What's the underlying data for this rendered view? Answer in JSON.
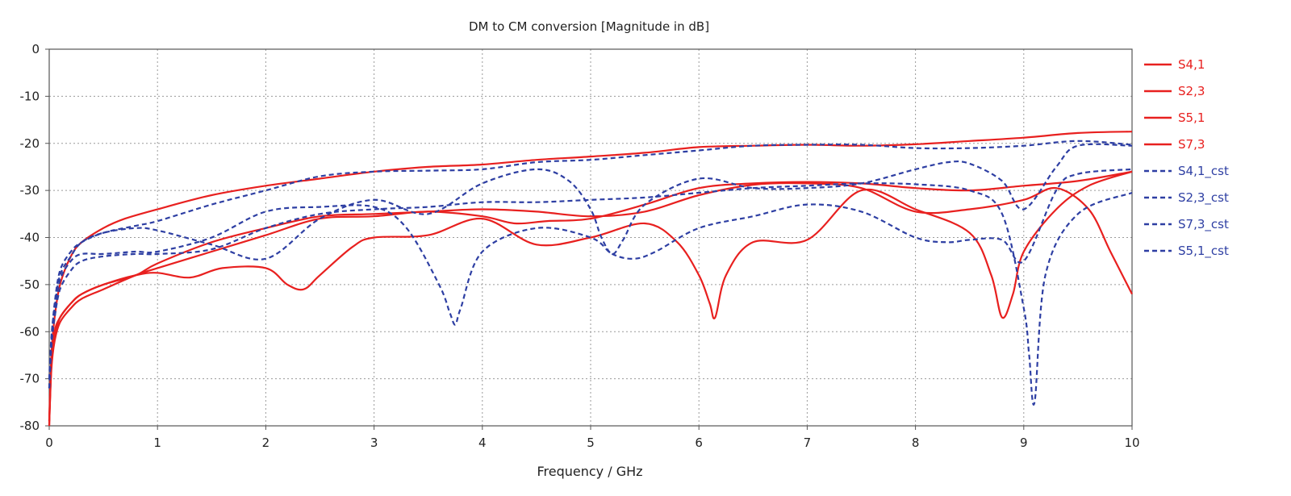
{
  "chart_data": {
    "type": "line",
    "title": "DM to CM conversion [Magnitude in dB]",
    "xlabel": "Frequency / GHz",
    "ylabel": "",
    "xlim": [
      0,
      10
    ],
    "ylim": [
      -80,
      0
    ],
    "xticks": [
      0,
      1,
      2,
      3,
      4,
      5,
      6,
      7,
      8,
      9,
      10
    ],
    "yticks": [
      0,
      -10,
      -20,
      -30,
      -40,
      -50,
      -60,
      -70,
      -80
    ],
    "grid": true,
    "legend_position": "right",
    "series": [
      {
        "name": "S4,1",
        "color": "#e8201f",
        "style": "solid",
        "x": [
          0,
          0.02,
          0.05,
          0.1,
          0.2,
          0.3,
          0.5,
          0.7,
          1.0,
          1.5,
          2.0,
          2.5,
          3.0,
          3.5,
          4.0,
          4.5,
          5.0,
          5.5,
          6.0,
          6.5,
          7.0,
          7.5,
          8.0,
          8.5,
          9.0,
          9.5,
          10.0
        ],
        "y": [
          -79,
          -65,
          -57,
          -50,
          -44,
          -41,
          -38,
          -36,
          -34,
          -31,
          -29,
          -27.5,
          -26,
          -25,
          -24.5,
          -23.5,
          -22.8,
          -22,
          -20.8,
          -20.5,
          -20.3,
          -20.5,
          -20.2,
          -19.5,
          -18.8,
          -17.8,
          -17.5
        ]
      },
      {
        "name": "S2,3",
        "color": "#e8201f",
        "style": "solid",
        "x": [
          0,
          0.02,
          0.05,
          0.1,
          0.2,
          0.3,
          0.5,
          0.8,
          1.0,
          1.5,
          2.0,
          2.5,
          3.0,
          3.5,
          4.0,
          4.3,
          4.6,
          5.0,
          5.5,
          6.0,
          6.5,
          7.0,
          7.5,
          8.0,
          8.5,
          9.0,
          9.5,
          10.0
        ],
        "y": [
          -80,
          -68,
          -62,
          -58,
          -55,
          -53,
          -51,
          -48,
          -46.5,
          -43,
          -39.5,
          -36,
          -35.5,
          -34.5,
          -35.5,
          -37,
          -36.5,
          -36,
          -33,
          -29.5,
          -28.5,
          -28.2,
          -28.5,
          -29.5,
          -30,
          -29,
          -28,
          -26
        ]
      },
      {
        "name": "S5,1",
        "color": "#e8201f",
        "style": "solid",
        "x": [
          0,
          0.02,
          0.05,
          0.1,
          0.2,
          0.3,
          0.5,
          0.8,
          1.0,
          1.3,
          1.6,
          2.0,
          2.2,
          2.35,
          2.5,
          2.8,
          3.0,
          3.5,
          4.0,
          4.5,
          5.0,
          5.5,
          5.8,
          6.0,
          6.1,
          6.15,
          6.25,
          6.5,
          7.0,
          7.5,
          8.0,
          8.5,
          8.7,
          8.8,
          8.9,
          9.0,
          9.3,
          9.6,
          10.0
        ],
        "y": [
          -79,
          -67,
          -61,
          -57,
          -54,
          -52,
          -50,
          -48,
          -47.5,
          -48.5,
          -46.5,
          -46.5,
          -50,
          -51,
          -48,
          -42,
          -40,
          -39.5,
          -36,
          -41.5,
          -40,
          -37,
          -41,
          -48,
          -54,
          -57,
          -48,
          -41,
          -40.5,
          -30,
          -34,
          -39,
          -48,
          -57,
          -52,
          -43,
          -34,
          -29,
          -26
        ]
      },
      {
        "name": "S7,3",
        "color": "#e8201f",
        "style": "solid",
        "x": [
          0,
          0.02,
          0.05,
          0.1,
          0.2,
          0.3,
          0.5,
          0.8,
          1.0,
          1.5,
          2.0,
          2.5,
          3.0,
          3.5,
          4.0,
          4.5,
          5.0,
          5.5,
          6.0,
          6.5,
          7.0,
          7.5,
          8.0,
          8.5,
          9.0,
          9.3,
          9.6,
          9.8,
          10.0
        ],
        "y": [
          -80,
          -67,
          -60,
          -57,
          -54,
          -52,
          -50,
          -48,
          -45.5,
          -41,
          -38,
          -35.5,
          -35,
          -34.5,
          -34,
          -34.5,
          -35.5,
          -34.5,
          -31,
          -28.8,
          -28.5,
          -29.5,
          -34.5,
          -34,
          -32,
          -29.5,
          -34,
          -43,
          -52
        ]
      },
      {
        "name": "S4,1_cst",
        "color": "#2e3fa3",
        "style": "dashed",
        "x": [
          0,
          0.02,
          0.05,
          0.1,
          0.2,
          0.3,
          0.5,
          0.8,
          1.0,
          1.5,
          2.0,
          2.5,
          3.0,
          3.5,
          4.0,
          4.5,
          5.0,
          5.5,
          6.0,
          6.5,
          7.0,
          7.5,
          8.0,
          8.5,
          9.0,
          9.5,
          10.0
        ],
        "y": [
          -72,
          -62,
          -54,
          -47,
          -43,
          -41,
          -39,
          -37.5,
          -36.5,
          -33,
          -30,
          -27,
          -26,
          -25.8,
          -25.5,
          -24,
          -23.5,
          -22.5,
          -21.5,
          -20.5,
          -20.3,
          -20.3,
          -21,
          -21,
          -20.5,
          -19.5,
          -20.3
        ]
      },
      {
        "name": "S2,3_cst",
        "color": "#2e3fa3",
        "style": "dashed",
        "x": [
          0,
          0.02,
          0.05,
          0.1,
          0.2,
          0.3,
          0.5,
          0.8,
          1.0,
          1.5,
          2.0,
          2.5,
          3.0,
          3.5,
          4.0,
          4.5,
          5.0,
          5.5,
          6.0,
          6.5,
          7.0,
          7.5,
          8.0,
          8.5,
          8.8,
          9.0,
          9.05,
          9.1,
          9.2,
          9.5,
          10.0
        ],
        "y": [
          -72,
          -63,
          -57,
          -51,
          -47,
          -45,
          -44,
          -43.5,
          -43.5,
          -42.5,
          -38,
          -35,
          -34,
          -33.5,
          -32.5,
          -32.5,
          -32,
          -31.5,
          -30.5,
          -29.5,
          -29,
          -28.5,
          -28.7,
          -30,
          -35,
          -55,
          -65,
          -75,
          -48,
          -35,
          -30.5
        ]
      },
      {
        "name": "S7,3_cst",
        "color": "#2e3fa3",
        "style": "dashed",
        "x": [
          0,
          0.02,
          0.05,
          0.1,
          0.2,
          0.3,
          0.5,
          0.8,
          1.0,
          1.5,
          2.0,
          2.5,
          3.0,
          3.5,
          4.0,
          4.5,
          4.8,
          5.0,
          5.1,
          5.2,
          5.3,
          5.5,
          6.0,
          6.5,
          7.0,
          7.5,
          8.0,
          8.3,
          8.5,
          8.8,
          9.0,
          9.3,
          9.5,
          10.0
        ],
        "y": [
          -70,
          -61,
          -55,
          -48,
          -44,
          -41,
          -39,
          -38,
          -38.5,
          -41.5,
          -44.5,
          -36,
          -32,
          -35,
          -28.5,
          -25.5,
          -28,
          -34,
          -40,
          -43.5,
          -40.5,
          -33,
          -27.5,
          -29.5,
          -29.5,
          -28.5,
          -25.5,
          -24,
          -24.3,
          -28,
          -34,
          -25,
          -20.5,
          -20.5
        ]
      },
      {
        "name": "S5,1_cst",
        "color": "#2e3fa3",
        "style": "dashed",
        "x": [
          0,
          0.02,
          0.05,
          0.1,
          0.2,
          0.3,
          0.5,
          0.8,
          1.0,
          1.5,
          2.0,
          2.5,
          3.0,
          3.3,
          3.6,
          3.7,
          3.75,
          3.8,
          4.0,
          4.5,
          5.0,
          5.2,
          5.4,
          5.6,
          6.0,
          6.5,
          7.0,
          7.5,
          8.0,
          8.3,
          8.5,
          8.8,
          9.0,
          9.3,
          9.5,
          10.0
        ],
        "y": [
          -72,
          -63,
          -56,
          -49,
          -45,
          -43.5,
          -43.5,
          -43,
          -43,
          -40,
          -34.5,
          -33.5,
          -33.5,
          -38,
          -50,
          -56,
          -58.5,
          -55,
          -43,
          -38,
          -40,
          -43.5,
          -44.5,
          -43,
          -38,
          -35.5,
          -33,
          -34.5,
          -40,
          -41,
          -40.5,
          -40.5,
          -45,
          -30,
          -26.5,
          -25.5
        ]
      }
    ]
  }
}
